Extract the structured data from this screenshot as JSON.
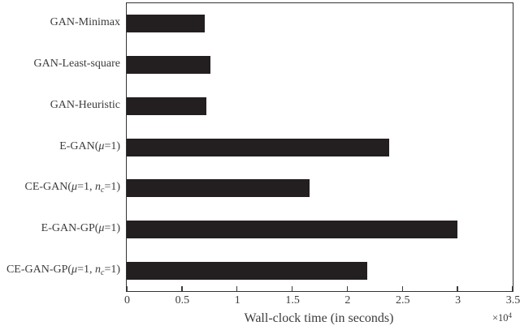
{
  "chart_data": {
    "type": "bar",
    "orientation": "horizontal",
    "title": "",
    "xlabel": "Wall-clock time (in seconds)",
    "ylabel": "",
    "xlim": [
      0,
      3.5
    ],
    "x_multiplier_base": "×10",
    "x_multiplier_exp": "4",
    "xtick_values": [
      0,
      0.5,
      1,
      1.5,
      2,
      2.5,
      3,
      3.5
    ],
    "xtick_labels": [
      "0",
      "0.5",
      "1",
      "1.5",
      "2",
      "2.5",
      "3",
      "3.5"
    ],
    "grid": false,
    "legend": false,
    "bar_color": "#231f20",
    "axis_color": "#333333",
    "text_color": "#3c3c3c",
    "categories": [
      "GAN-Minimax",
      "GAN-Least-square",
      "GAN-Heuristic",
      "E-GAN(μ=1)",
      "CE-GAN(μ=1, n_c=1)",
      "E-GAN-GP(μ=1)",
      "CE-GAN-GP(μ=1, n_c=1)"
    ],
    "values_x10e4": [
      0.71,
      0.76,
      0.72,
      2.38,
      1.66,
      3.0,
      2.18
    ],
    "values_seconds": [
      7100,
      7600,
      7200,
      23800,
      16600,
      30000,
      21800
    ]
  }
}
